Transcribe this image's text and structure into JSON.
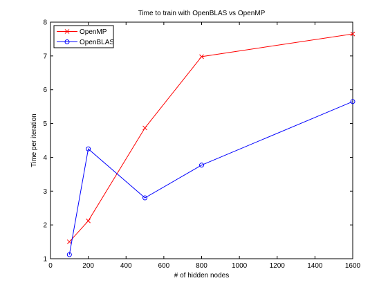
{
  "chart_data": {
    "type": "line",
    "title": "Time to train with OpenBLAS vs OpenMP",
    "xlabel": "# of hidden nodes",
    "ylabel": "Time per iteration",
    "xlim": [
      0,
      1600
    ],
    "ylim": [
      1,
      8
    ],
    "xticks": [
      0,
      200,
      400,
      600,
      800,
      1000,
      1200,
      1400,
      1600
    ],
    "yticks": [
      1,
      2,
      3,
      4,
      5,
      6,
      7,
      8
    ],
    "grid": false,
    "legend_position": "top-left",
    "series": [
      {
        "name": "OpenMP",
        "color": "#ff0000",
        "marker": "x",
        "x": [
          100,
          200,
          500,
          800,
          1600
        ],
        "y": [
          1.5,
          2.12,
          4.87,
          6.98,
          7.65
        ]
      },
      {
        "name": "OpenBLAS",
        "color": "#0000ff",
        "marker": "o",
        "x": [
          100,
          200,
          500,
          800,
          1600
        ],
        "y": [
          1.12,
          4.25,
          2.8,
          3.77,
          5.65
        ]
      }
    ]
  }
}
